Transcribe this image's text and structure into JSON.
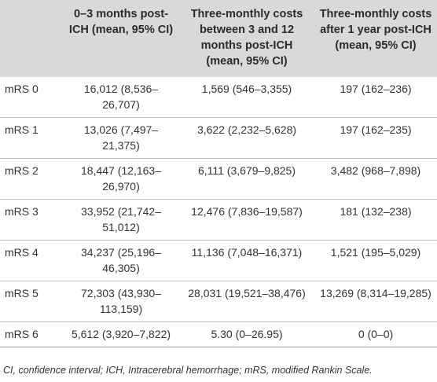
{
  "table": {
    "headers": [
      "",
      "0–3 months post-ICH (mean, 95% CI)",
      "Three-monthly costs between 3 and 12 months post-ICH (mean, 95% CI)",
      "Three-monthly costs after 1 year post-ICH (mean, 95% CI)"
    ],
    "rows": [
      [
        "mRS 0",
        "16,012 (8,536–26,707)",
        "1,569 (546–3,355)",
        "197 (162–236)"
      ],
      [
        "mRS 1",
        "13,026 (7,497–21,375)",
        "3,622 (2,232–5,628)",
        "197 (162–235)"
      ],
      [
        "mRS 2",
        "18,447 (12,163–26,970)",
        "6,111 (3,679–9,825)",
        "3,482 (968–7,898)"
      ],
      [
        "mRS 3",
        "33,952 (21,742–51,012)",
        "12,476 (7,836–19,587)",
        "181 (132–238)"
      ],
      [
        "mRS 4",
        "34,237 (25,196–46,305)",
        "11,136 (7,048–16,371)",
        "1,521 (195–5,029)"
      ],
      [
        "mRS 5",
        "72,303 (43,930–113,159)",
        "28,031 (19,521–38,476)",
        "13,269 (8,314–19,285)"
      ],
      [
        "mRS 6",
        "5,612 (3,920–7,822)",
        "5.30 (0–26.95)",
        "0 (0–0)"
      ]
    ]
  },
  "footnote": "CI, confidence interval; ICH, Intracerebral hemorrhage; mRS, modified Rankin Scale."
}
